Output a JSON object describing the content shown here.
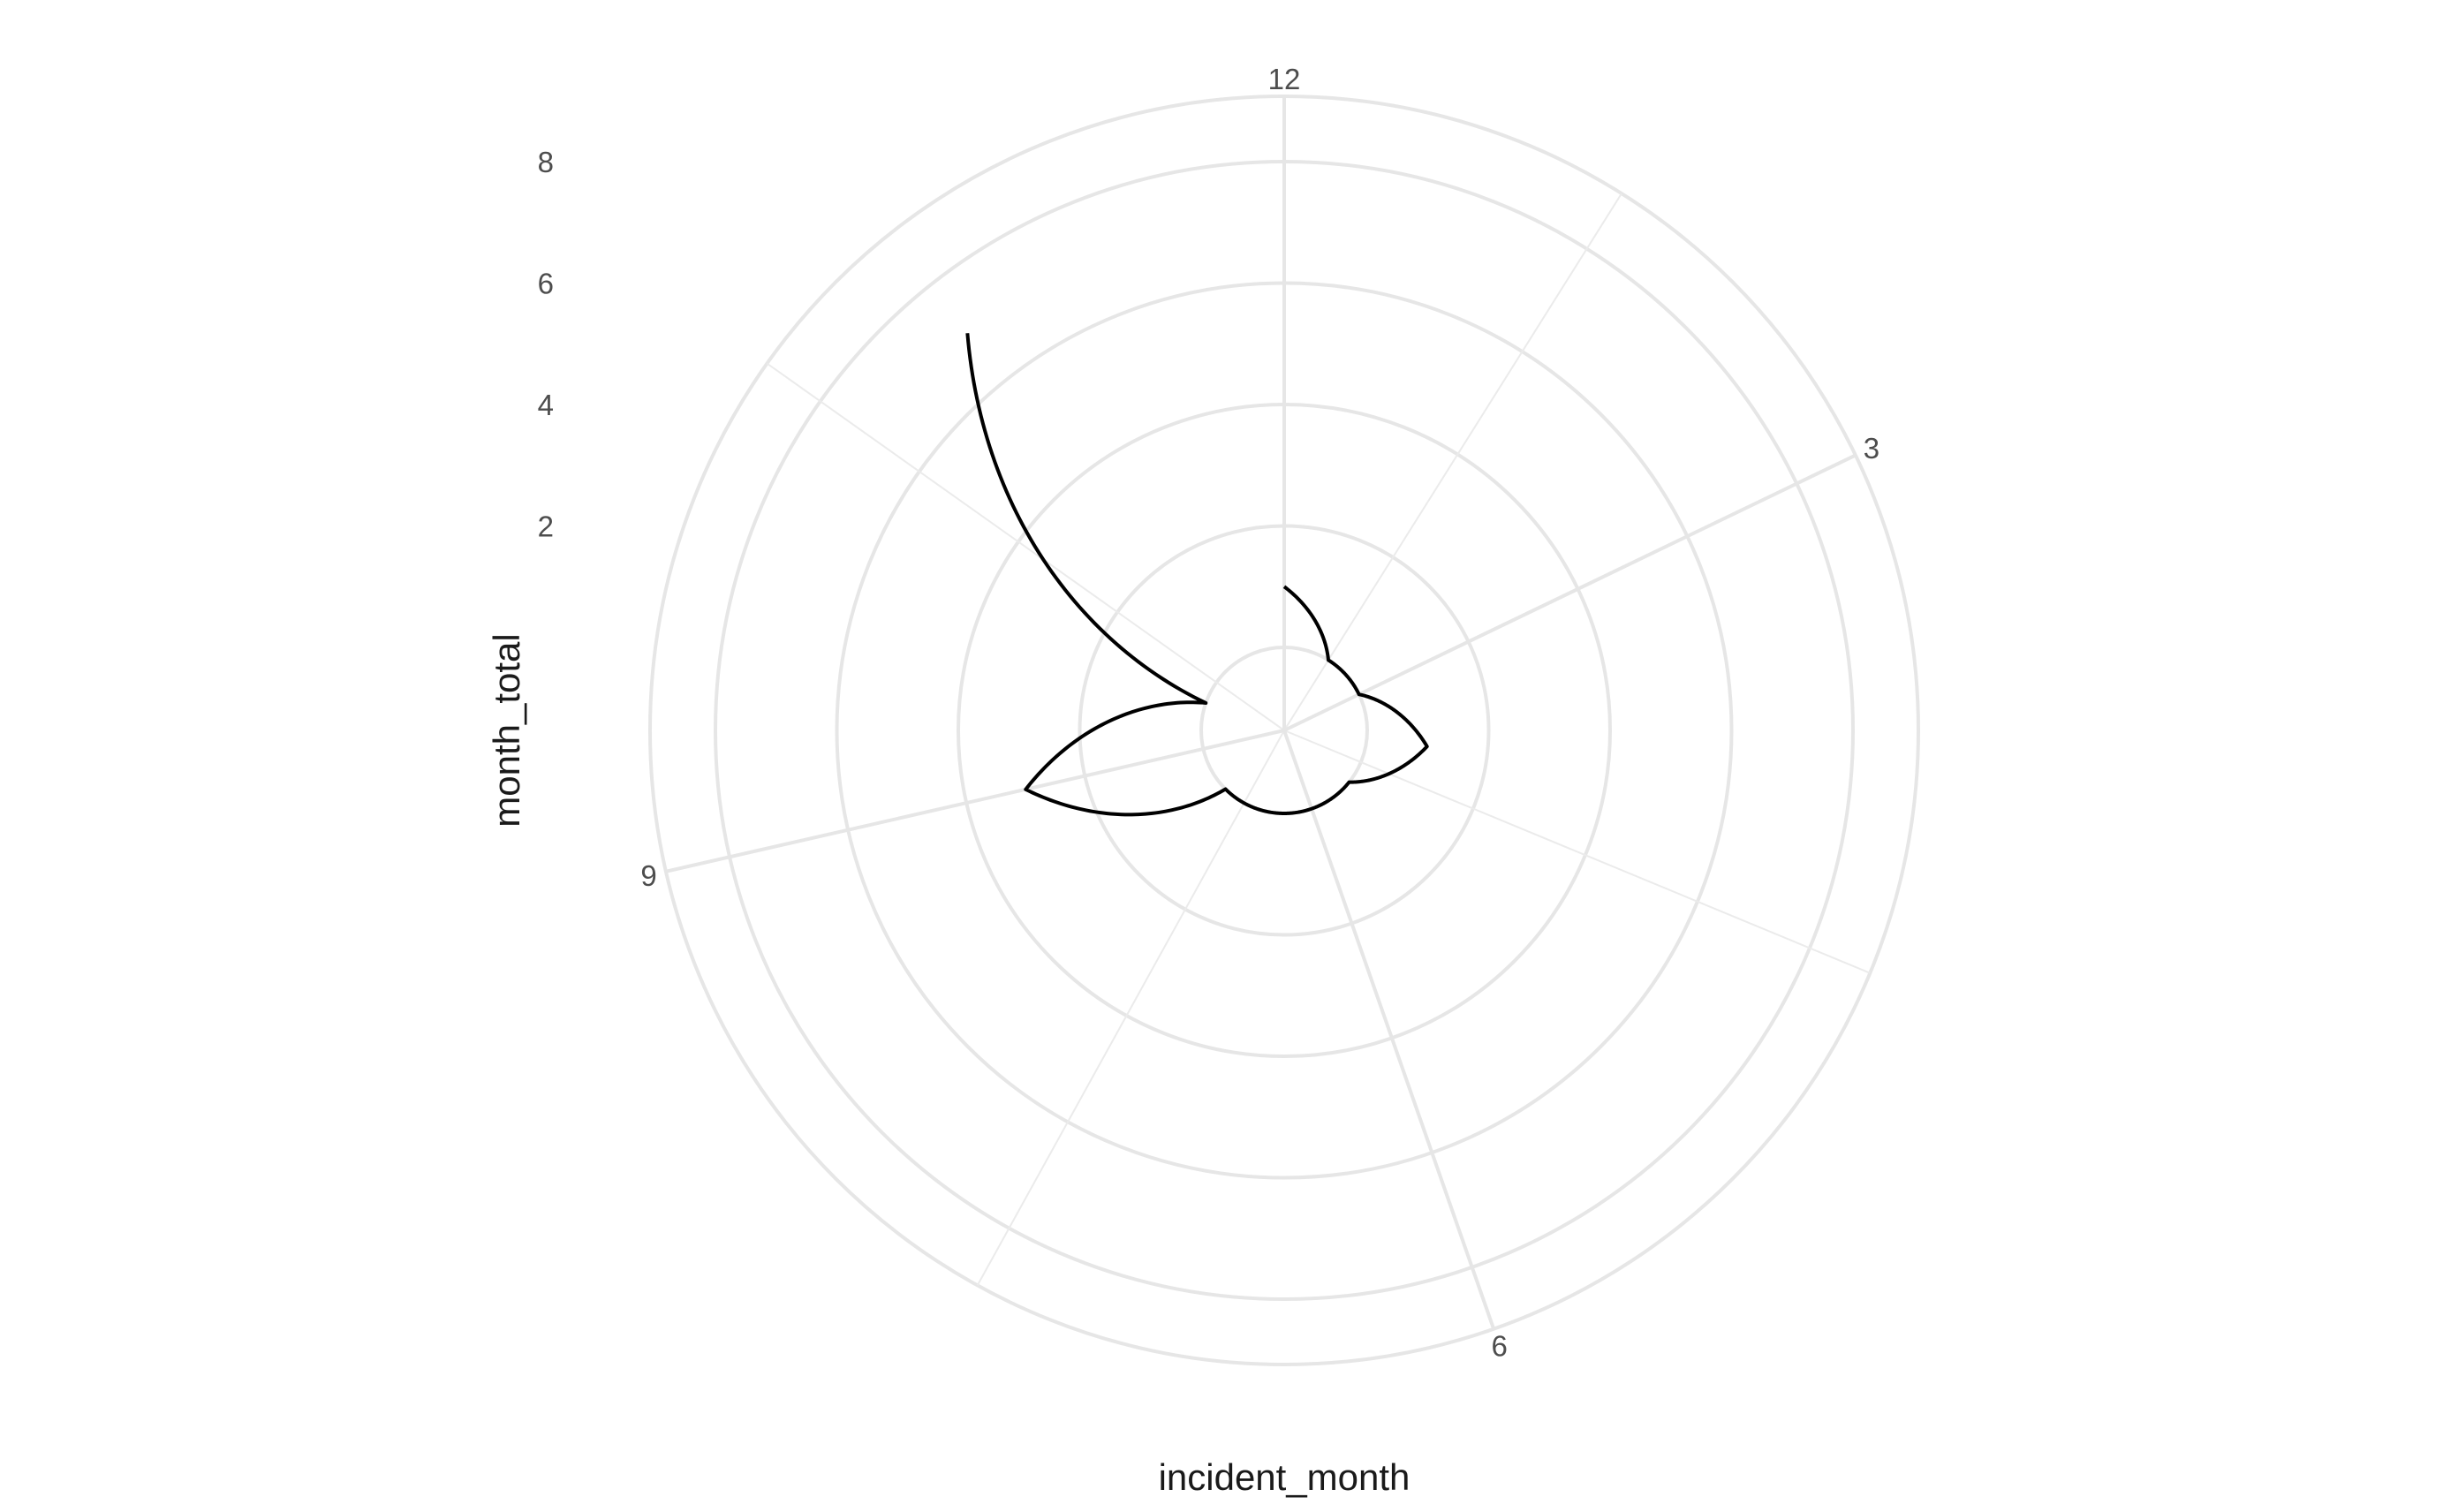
{
  "chart_data": {
    "type": "polar-line",
    "title": "",
    "xlabel": "incident_month",
    "ylabel": "month_total",
    "x": [
      1,
      2,
      3,
      4,
      5,
      6,
      7,
      8,
      9,
      10,
      11
    ],
    "values": [
      1.0,
      0.0,
      0.0,
      1.0,
      0.0,
      0.0,
      0.0,
      0.0,
      3.0,
      0.0,
      7.0
    ],
    "xlim": [
      1,
      12.2
    ],
    "ylim": [
      0,
      8
    ],
    "x_ticks": [
      3,
      6,
      9,
      12
    ],
    "x_tick_labels": [
      "3",
      "6",
      "9",
      "12"
    ],
    "y_ticks": [
      2,
      4,
      6,
      8
    ],
    "y_tick_labels": [
      "2",
      "4",
      "6",
      "8"
    ],
    "grid": true,
    "legend": "none"
  }
}
